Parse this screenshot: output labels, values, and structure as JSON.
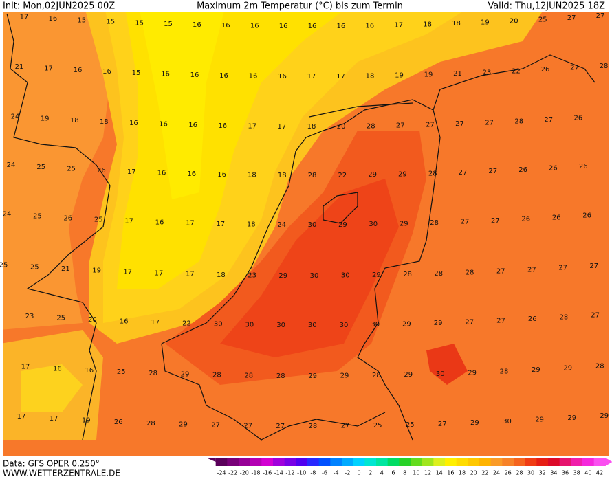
{
  "header": {
    "init": "Init: Mon,02JUN2025 00Z",
    "title": "Maximum 2m Temperatur (°C) bis zum Termin",
    "valid": "Valid: Thu,12JUN2025 18Z"
  },
  "grid_values": [
    [
      17,
      16,
      15,
      15,
      15,
      15,
      16,
      16,
      16,
      16,
      16,
      16,
      16,
      17,
      18,
      18,
      19,
      20,
      25,
      27,
      27
    ],
    [
      21,
      17,
      16,
      16,
      15,
      16,
      16,
      16,
      16,
      16,
      17,
      17,
      18,
      19,
      19,
      21,
      23,
      22,
      26,
      27,
      28
    ],
    [
      24,
      19,
      18,
      18,
      16,
      16,
      16,
      16,
      17,
      17,
      18,
      20,
      28,
      27,
      27,
      27,
      27,
      28,
      27,
      26
    ],
    [
      24,
      25,
      25,
      26,
      17,
      16,
      16,
      16,
      18,
      18,
      28,
      22,
      29,
      29,
      28,
      27,
      27,
      26,
      26,
      26
    ],
    [
      24,
      25,
      26,
      25,
      17,
      16,
      17,
      17,
      18,
      24,
      30,
      29,
      30,
      29,
      28,
      27,
      27,
      26,
      26,
      26
    ],
    [
      25,
      25,
      21,
      19,
      17,
      17,
      17,
      18,
      23,
      29,
      30,
      30,
      29,
      28,
      28,
      28,
      27,
      27,
      27,
      27
    ],
    [
      23,
      25,
      20,
      16,
      17,
      22,
      30,
      30,
      30,
      30,
      30,
      30,
      29,
      29,
      27,
      27,
      26,
      28,
      27
    ],
    [
      17,
      16,
      16,
      25,
      28,
      29,
      28,
      28,
      28,
      29,
      29,
      28,
      29,
      30,
      29,
      28,
      29,
      29,
      28
    ],
    [
      17,
      17,
      19,
      26,
      28,
      29,
      27,
      27,
      27,
      28,
      27,
      25,
      25,
      27,
      29,
      30,
      29,
      29,
      29
    ]
  ],
  "colorbar": {
    "ticks": [
      -24,
      -22,
      -20,
      -18,
      -16,
      -14,
      -12,
      -10,
      -8,
      -6,
      -4,
      -2,
      0,
      2,
      4,
      6,
      8,
      10,
      12,
      14,
      16,
      18,
      20,
      22,
      24,
      26,
      28,
      30,
      32,
      34,
      36,
      38,
      40,
      42
    ]
  },
  "footer": {
    "source": "Data: GFS OPER 0.250°",
    "site": "WWW.WETTERZENTRALE.DE"
  }
}
